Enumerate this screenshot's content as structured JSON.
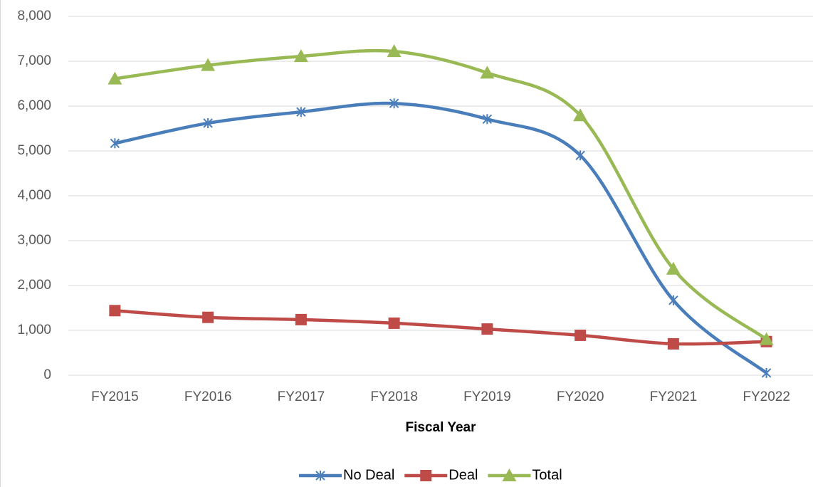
{
  "chart_data": {
    "type": "line",
    "x_label": "Fiscal Year",
    "categories": [
      "FY2015",
      "FY2016",
      "FY2017",
      "FY2018",
      "FY2019",
      "FY2020",
      "FY2021",
      "FY2022"
    ],
    "series": [
      {
        "name": "No Deal",
        "color": "#4a7ebb",
        "marker": "star",
        "values": [
          5170,
          5620,
          5870,
          6060,
          5710,
          4900,
          1670,
          50
        ]
      },
      {
        "name": "Deal",
        "color": "#be4b48",
        "marker": "square",
        "values": [
          1440,
          1290,
          1240,
          1160,
          1030,
          890,
          700,
          750
        ]
      },
      {
        "name": "Total",
        "color": "#98b954",
        "marker": "triangle",
        "values": [
          6610,
          6910,
          7110,
          7220,
          6740,
          5790,
          2370,
          800
        ]
      }
    ],
    "ylim": [
      0,
      8000
    ],
    "yticks": [
      0,
      {
        "value": 1000,
        "label": "1,000"
      },
      {
        "value": 2000,
        "label": "2,000"
      },
      {
        "value": 3000,
        "label": "3,000"
      },
      {
        "value": 4000,
        "label": "4,000"
      },
      {
        "value": 5000,
        "label": "5,000"
      },
      {
        "value": 6000,
        "label": "6,000"
      },
      {
        "value": 7000,
        "label": "7,000"
      },
      {
        "value": 8000,
        "label": "8,000"
      }
    ],
    "grid": true,
    "legend": "bottom"
  }
}
